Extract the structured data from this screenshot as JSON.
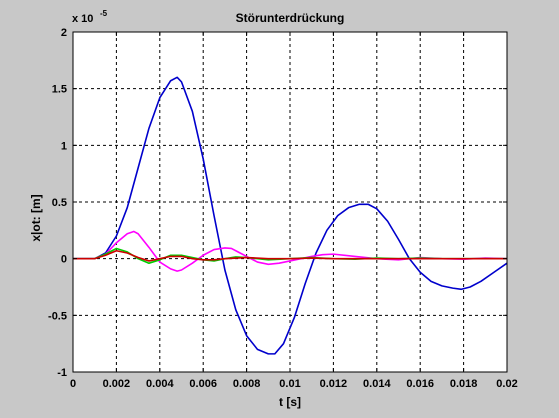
{
  "chart_data": {
    "type": "line",
    "title": "Störunterdrückung",
    "xlabel": "t [s]",
    "ylabel": "x|ot: [m]",
    "y_scale_label": "x 10",
    "y_scale_exponent": "-5",
    "xlim": [
      0,
      0.02
    ],
    "ylim": [
      -1,
      2
    ],
    "grid": true,
    "x_ticks": [
      "0",
      "0.002",
      "0.004",
      "0.006",
      "0.008",
      "0.01",
      "0.012",
      "0.014",
      "0.016",
      "0.018",
      "0.02"
    ],
    "y_ticks": [
      "-1",
      "-0.5",
      "0",
      "0.5",
      "1",
      "1.5",
      "2"
    ],
    "series": [
      {
        "color": "#0000cc",
        "x": [
          0,
          0.001,
          0.0015,
          0.002,
          0.0025,
          0.003,
          0.0035,
          0.004,
          0.0045,
          0.0048,
          0.005,
          0.0055,
          0.006,
          0.0065,
          0.007,
          0.0075,
          0.008,
          0.0085,
          0.009,
          0.0093,
          0.0097,
          0.0102,
          0.0107,
          0.0112,
          0.0117,
          0.0122,
          0.0127,
          0.0132,
          0.0136,
          0.014,
          0.0145,
          0.015,
          0.0155,
          0.016,
          0.0165,
          0.017,
          0.0175,
          0.0179,
          0.0183,
          0.0188,
          0.0194,
          0.02
        ],
        "y": [
          0,
          0,
          0.05,
          0.2,
          0.45,
          0.8,
          1.15,
          1.42,
          1.57,
          1.6,
          1.56,
          1.3,
          0.88,
          0.38,
          -0.1,
          -0.45,
          -0.68,
          -0.8,
          -0.84,
          -0.84,
          -0.75,
          -0.52,
          -0.22,
          0.05,
          0.25,
          0.38,
          0.45,
          0.48,
          0.48,
          0.44,
          0.33,
          0.17,
          0.0,
          -0.12,
          -0.2,
          -0.24,
          -0.26,
          -0.27,
          -0.25,
          -0.2,
          -0.12,
          -0.04
        ]
      },
      {
        "color": "#ff00ff",
        "x": [
          0,
          0.001,
          0.0015,
          0.002,
          0.0025,
          0.0028,
          0.003,
          0.0035,
          0.004,
          0.0045,
          0.0048,
          0.005,
          0.0055,
          0.006,
          0.0065,
          0.007,
          0.0073,
          0.0076,
          0.008,
          0.0085,
          0.009,
          0.0095,
          0.01,
          0.0105,
          0.011,
          0.0115,
          0.012,
          0.013,
          0.014,
          0.015,
          0.016,
          0.017,
          0.018,
          0.019,
          0.02
        ],
        "y": [
          0,
          0,
          0.04,
          0.14,
          0.22,
          0.24,
          0.22,
          0.1,
          -0.03,
          -0.09,
          -0.11,
          -0.1,
          -0.04,
          0.03,
          0.08,
          0.095,
          0.09,
          0.06,
          0.02,
          -0.03,
          -0.05,
          -0.04,
          -0.02,
          0.0,
          0.02,
          0.035,
          0.04,
          0.02,
          0.0,
          -0.01,
          0.01,
          0.0,
          -0.005,
          0.005,
          0.0
        ]
      },
      {
        "color": "#00cc00",
        "x": [
          0,
          0.001,
          0.0015,
          0.002,
          0.0025,
          0.003,
          0.0035,
          0.004,
          0.0045,
          0.005,
          0.0055,
          0.006,
          0.0065,
          0.007,
          0.0075,
          0.008,
          0.009,
          0.01,
          0.011,
          0.012,
          0.013,
          0.014,
          0.015,
          0.016,
          0.017,
          0.018,
          0.019,
          0.02
        ],
        "y": [
          0,
          0,
          0.04,
          0.09,
          0.06,
          0.0,
          -0.04,
          -0.01,
          0.03,
          0.03,
          0.01,
          -0.01,
          -0.02,
          0.0,
          0.015,
          0.01,
          -0.01,
          0.0,
          0.01,
          0.0,
          -0.005,
          0.005,
          0.0,
          0.005,
          0.0,
          0.0,
          0.0,
          0.0
        ]
      },
      {
        "color": "#cc0000",
        "x": [
          0,
          0.001,
          0.0015,
          0.002,
          0.0025,
          0.003,
          0.0035,
          0.004,
          0.0045,
          0.005,
          0.0055,
          0.006,
          0.0065,
          0.007,
          0.008,
          0.009,
          0.01,
          0.011,
          0.012,
          0.013,
          0.014,
          0.015,
          0.016,
          0.017,
          0.018,
          0.019,
          0.02
        ],
        "y": [
          0,
          0,
          0.03,
          0.07,
          0.05,
          0.01,
          -0.02,
          0.0,
          0.02,
          0.02,
          0.0,
          -0.01,
          -0.01,
          0.0,
          0.01,
          0.0,
          0.0,
          0.005,
          0.0,
          0.0,
          0.0,
          0.0,
          0.0,
          0.0,
          0.0,
          0.0,
          0.0
        ]
      }
    ]
  }
}
